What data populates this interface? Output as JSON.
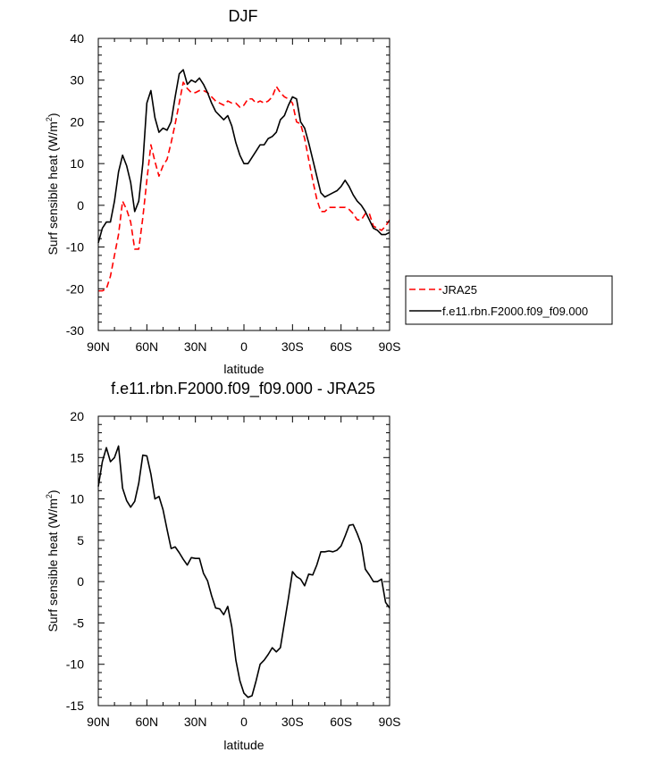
{
  "chart_data": [
    {
      "type": "line",
      "title": "DJF",
      "xlabel": "latitude",
      "ylabel": "Surf sensible heat (W/m",
      "ylabel_sup": "2",
      "ylabel_end": ")",
      "xlim": [
        90,
        -90
      ],
      "ylim": [
        -30,
        40
      ],
      "xticks": [
        90,
        60,
        30,
        0,
        -30,
        -60,
        -90
      ],
      "xtick_labels": [
        "90N",
        "60N",
        "30N",
        "0",
        "30S",
        "60S",
        "90S"
      ],
      "yticks": [
        -30,
        -20,
        -10,
        0,
        10,
        20,
        30,
        40
      ],
      "ytick_labels": [
        "-30",
        "-20",
        "-10",
        "0",
        "10",
        "20",
        "30",
        "40"
      ],
      "legend_position": "right",
      "series": [
        {
          "name": "JRA25",
          "color": "#ff0000",
          "dash": true,
          "x": [
            90,
            87.5,
            85,
            82.5,
            80,
            77.5,
            75,
            72.5,
            70,
            67.5,
            65,
            62.5,
            60,
            57.5,
            55,
            52.5,
            50,
            47.5,
            45,
            42.5,
            40,
            37.5,
            35,
            32.5,
            30,
            27.5,
            25,
            22.5,
            20,
            17.5,
            15,
            12.5,
            10,
            7.5,
            5,
            2.5,
            0,
            -2.5,
            -5,
            -7.5,
            -10,
            -12.5,
            -15,
            -17.5,
            -20,
            -22.5,
            -25,
            -27.5,
            -30,
            -32.5,
            -35,
            -37.5,
            -40,
            -42.5,
            -45,
            -47.5,
            -50,
            -52.5,
            -55,
            -57.5,
            -60,
            -62.5,
            -65,
            -67.5,
            -70,
            -72.5,
            -75,
            -77.5,
            -80,
            -82.5,
            -85,
            -87.5,
            -90
          ],
          "y": [
            -20.5,
            -20.5,
            -20,
            -17,
            -12,
            -7,
            1,
            -1,
            -4,
            -10.5,
            -10.5,
            -3,
            6,
            14.5,
            10.5,
            7,
            9.5,
            11,
            15,
            19.5,
            24.5,
            29.5,
            28,
            27,
            27,
            27.5,
            27.5,
            27,
            26,
            25,
            24.5,
            24,
            25,
            24.5,
            24.5,
            23.5,
            24,
            25.5,
            25.5,
            24.5,
            25,
            24.5,
            25,
            26,
            28.5,
            27,
            26,
            25.5,
            24.5,
            20,
            19.5,
            16,
            11,
            6,
            1.5,
            -1.5,
            -1.5,
            -0.5,
            -0.5,
            -0.5,
            -0.5,
            -0.5,
            -1,
            -2,
            -3.5,
            -3.5,
            -2,
            -2,
            -5,
            -5.5,
            -6,
            -5,
            -3.5
          ]
        },
        {
          "name": "f.e11.rbn.F2000.f09_f09.000",
          "color": "#000000",
          "dash": false,
          "x": [
            90,
            87.5,
            85,
            82.5,
            80,
            77.5,
            75,
            72.5,
            70,
            67.5,
            65,
            62.5,
            60,
            57.5,
            55,
            52.5,
            50,
            47.5,
            45,
            42.5,
            40,
            37.5,
            35,
            32.5,
            30,
            27.5,
            25,
            22.5,
            20,
            17.5,
            15,
            12.5,
            10,
            7.5,
            5,
            2.5,
            0,
            -2.5,
            -5,
            -7.5,
            -10,
            -12.5,
            -15,
            -17.5,
            -20,
            -22.5,
            -25,
            -27.5,
            -30,
            -32.5,
            -35,
            -37.5,
            -40,
            -42.5,
            -45,
            -47.5,
            -50,
            -52.5,
            -55,
            -57.5,
            -60,
            -62.5,
            -65,
            -67.5,
            -70,
            -72.5,
            -75,
            -77.5,
            -80,
            -82.5,
            -85,
            -87.5,
            -90
          ],
          "y": [
            -9,
            -5.5,
            -4,
            -4,
            1,
            8,
            12,
            9.5,
            5.5,
            -1.5,
            1,
            10,
            24.5,
            27.5,
            21,
            17.5,
            18.5,
            18,
            20,
            26,
            31.5,
            32.5,
            29,
            30,
            29.5,
            30.5,
            29,
            27,
            24.5,
            22.5,
            21.5,
            20.5,
            21.5,
            19,
            15,
            12,
            10,
            10,
            11.5,
            13,
            14.5,
            14.5,
            16,
            16.5,
            17.5,
            20.5,
            21.5,
            24,
            26,
            25.5,
            20,
            18.5,
            15,
            11,
            7,
            3,
            2,
            2.5,
            3,
            3.5,
            4.5,
            6,
            4.5,
            2.5,
            1,
            0,
            -1.5,
            -3.5,
            -5.5,
            -6,
            -7,
            -7,
            -6.5
          ]
        }
      ]
    },
    {
      "type": "line",
      "title": "f.e11.rbn.F2000.f09_f09.000 - JRA25",
      "xlabel": "latitude",
      "ylabel": "Surf sensible heat (W/m",
      "ylabel_sup": "2",
      "ylabel_end": ")",
      "xlim": [
        90,
        -90
      ],
      "ylim": [
        -15,
        20
      ],
      "xticks": [
        90,
        60,
        30,
        0,
        -30,
        -60,
        -90
      ],
      "xtick_labels": [
        "90N",
        "60N",
        "30N",
        "0",
        "30S",
        "60S",
        "90S"
      ],
      "yticks": [
        -15,
        -10,
        -5,
        0,
        5,
        10,
        15,
        20
      ],
      "ytick_labels": [
        "-15",
        "-10",
        "-5",
        "0",
        "5",
        "10",
        "15",
        "20"
      ],
      "series": [
        {
          "color": "#000000",
          "dash": false,
          "x": [
            90,
            87.5,
            85,
            82.5,
            80,
            77.5,
            75,
            72.5,
            70,
            67.5,
            65,
            62.5,
            60,
            57.5,
            55,
            52.5,
            50,
            47.5,
            45,
            42.5,
            40,
            37.5,
            35,
            32.5,
            30,
            27.5,
            25,
            22.5,
            20,
            17.5,
            15,
            12.5,
            10,
            7.5,
            5,
            2.5,
            0,
            -2.5,
            -5,
            -7.5,
            -10,
            -12.5,
            -15,
            -17.5,
            -20,
            -22.5,
            -25,
            -27.5,
            -30,
            -32.5,
            -35,
            -37.5,
            -40,
            -42.5,
            -45,
            -47.5,
            -50,
            -52.5,
            -55,
            -57.5,
            -60,
            -62.5,
            -65,
            -67.5,
            -70,
            -72.5,
            -75,
            -77.5,
            -80,
            -82.5,
            -85,
            -87.5,
            -90
          ],
          "y": [
            11.5,
            14.5,
            16.2,
            14.5,
            15,
            16.4,
            11.3,
            9.8,
            9,
            9.7,
            11.9,
            15.3,
            15.2,
            13,
            10,
            10.3,
            8.7,
            6.3,
            4,
            4.2,
            3.5,
            2.7,
            2,
            2.9,
            2.8,
            2.8,
            1,
            0.1,
            -1.7,
            -3.2,
            -3.3,
            -4,
            -3,
            -5.5,
            -9.5,
            -12,
            -13.5,
            -14,
            -13.8,
            -12,
            -10,
            -9.5,
            -8.8,
            -8,
            -8.5,
            -8,
            -5,
            -2,
            1.2,
            0.6,
            0.3,
            -0.5,
            0.9,
            0.8,
            2,
            3.6,
            3.6,
            3.7,
            3.6,
            3.8,
            4.3,
            5.5,
            6.8,
            6.9,
            5.8,
            4.5,
            1.5,
            0.8,
            0,
            0,
            0.3,
            -2.5,
            -3.2
          ]
        }
      ]
    }
  ]
}
